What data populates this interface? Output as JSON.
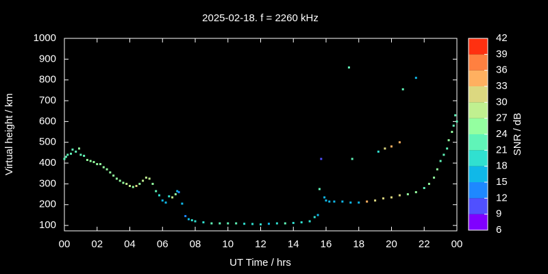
{
  "chart_data": {
    "type": "scatter",
    "title": "2025-02-18. f = 2260 kHz",
    "xlabel": "UT Time / hrs",
    "ylabel": "Virtual height / km",
    "colorbar_label": "SNR / dB",
    "xlim": [
      0,
      24
    ],
    "xticks": [
      {
        "value": 0,
        "label": "00"
      },
      {
        "value": 2,
        "label": "02"
      },
      {
        "value": 4,
        "label": "04"
      },
      {
        "value": 6,
        "label": "06"
      },
      {
        "value": 8,
        "label": "08"
      },
      10,
      12,
      14,
      16,
      18,
      20,
      22,
      {
        "value": 24,
        "label": "00"
      }
    ],
    "ylim": [
      74,
      1000
    ],
    "yticks": [
      100,
      200,
      300,
      400,
      500,
      600,
      700,
      800,
      900,
      1000
    ],
    "clim": [
      6,
      42
    ],
    "cticks": [
      6,
      9,
      12,
      15,
      18,
      21,
      24,
      27,
      30,
      33,
      36,
      39,
      42
    ],
    "colors": [
      "#8000ff",
      "#5050ff",
      "#1e88ff",
      "#10b8e8",
      "#30e0d0",
      "#60f4b8",
      "#94ffa0",
      "#c0f090",
      "#dcd880",
      "#ffb060",
      "#ff8040",
      "#ff3010"
    ],
    "x": [
      0.0,
      0.1,
      0.2,
      0.4,
      0.5,
      0.7,
      0.9,
      1.0,
      1.2,
      1.4,
      1.6,
      1.8,
      2.0,
      2.2,
      2.4,
      2.6,
      2.8,
      3.0,
      3.2,
      3.4,
      3.6,
      3.8,
      4.0,
      4.2,
      4.4,
      4.6,
      4.8,
      5.0,
      5.2,
      5.4,
      5.6,
      5.8,
      6.0,
      6.2,
      6.4,
      6.6,
      6.8,
      6.9,
      7.0,
      7.2,
      7.4,
      7.6,
      7.8,
      8.0,
      8.5,
      9.0,
      9.5,
      10.0,
      10.5,
      11.0,
      11.5,
      12.0,
      12.5,
      13.0,
      13.5,
      14.0,
      14.5,
      15.0,
      15.3,
      15.5,
      15.6,
      15.7,
      15.9,
      16.0,
      16.2,
      16.5,
      17.0,
      17.5,
      18.0,
      18.5,
      19.0,
      19.5,
      20.0,
      20.5,
      21.0,
      21.5,
      22.0,
      22.3,
      22.6,
      22.8,
      23.0,
      23.2,
      23.4,
      23.5,
      23.7,
      23.8,
      23.9,
      24.0,
      17.4,
      17.6,
      19.2,
      19.6,
      20.0,
      20.5,
      20.7,
      21.5
    ],
    "values": [
      420,
      430,
      440,
      445,
      465,
      455,
      470,
      440,
      435,
      415,
      410,
      405,
      395,
      395,
      380,
      370,
      355,
      340,
      325,
      315,
      305,
      300,
      290,
      285,
      290,
      300,
      315,
      330,
      325,
      300,
      265,
      245,
      220,
      210,
      240,
      235,
      250,
      265,
      260,
      205,
      145,
      130,
      125,
      120,
      115,
      110,
      110,
      110,
      110,
      108,
      107,
      105,
      108,
      110,
      110,
      112,
      115,
      120,
      140,
      150,
      275,
      420,
      235,
      220,
      215,
      215,
      215,
      210,
      210,
      215,
      220,
      230,
      235,
      245,
      250,
      260,
      280,
      300,
      330,
      370,
      410,
      440,
      470,
      510,
      550,
      580,
      630,
      600,
      860,
      420,
      455,
      470,
      480,
      500,
      755,
      810
    ],
    "snr": [
      22,
      22,
      23,
      23,
      22,
      23,
      25,
      22,
      23,
      24,
      24,
      24,
      25,
      25,
      24,
      25,
      25,
      25,
      24,
      25,
      26,
      28,
      27,
      25,
      32,
      26,
      28,
      29,
      28,
      24,
      22,
      18,
      16,
      15,
      18,
      28,
      24,
      15,
      13,
      15,
      13,
      15,
      18,
      20,
      20,
      21,
      21,
      21,
      21,
      20,
      19,
      19,
      17,
      18,
      21,
      19,
      20,
      20,
      18,
      16,
      21,
      10,
      17,
      16,
      15,
      16,
      16,
      16,
      17,
      33,
      31,
      32,
      31,
      31,
      26,
      26,
      23,
      24,
      25,
      24,
      22,
      21,
      22,
      26,
      25,
      22,
      22,
      23,
      22,
      23,
      19,
      32,
      34,
      33,
      21,
      16
    ]
  }
}
